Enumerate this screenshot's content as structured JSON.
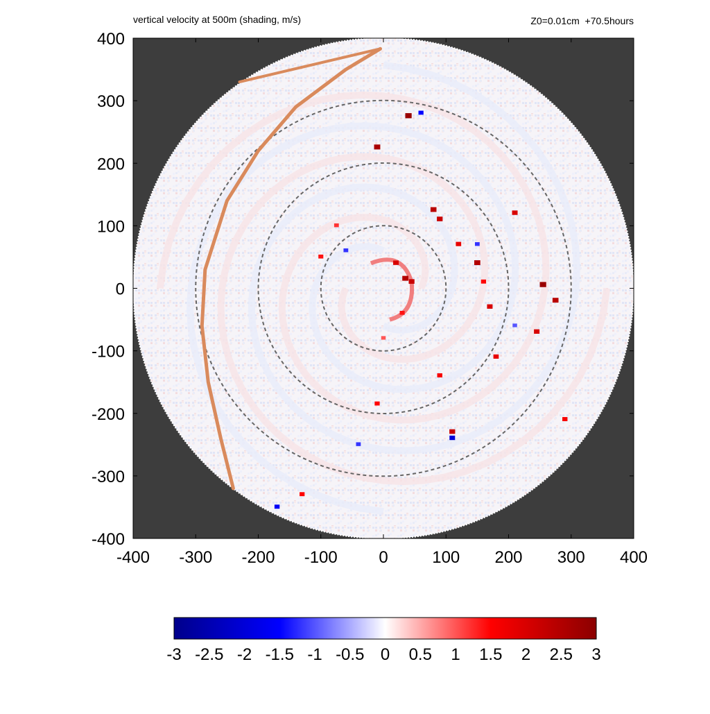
{
  "header": {
    "title": "vertical velocity at 500m (shading, m/s)",
    "run_info": "Z0=0.01cm  +70.5hours"
  },
  "chart_data": {
    "type": "heatmap",
    "title": "vertical velocity at 500m (shading, m/s)",
    "annotation": "Z0=0.01cm  +70.5hours",
    "xlim": [
      -400,
      400
    ],
    "ylim": [
      -400,
      400
    ],
    "xticks": [
      -400,
      -300,
      -200,
      -100,
      0,
      100,
      200,
      300,
      400
    ],
    "yticks": [
      -400,
      -300,
      -200,
      -100,
      0,
      100,
      200,
      300,
      400
    ],
    "xtick_labels": [
      "-400",
      "-300",
      "-200",
      "-100",
      "0",
      "100",
      "200",
      "300",
      "400"
    ],
    "ytick_labels": [
      "-400",
      "-300",
      "-200",
      "-100",
      "0",
      "100",
      "200",
      "300",
      "400"
    ],
    "domain_radius": 400,
    "range_rings": [
      100,
      200,
      300
    ],
    "background_color": "#3d3d3d",
    "orange_trajectory": {
      "color": "#d98a5c",
      "points": [
        [
          -5,
          383
        ],
        [
          -60,
          350
        ],
        [
          -140,
          290
        ],
        [
          -200,
          220
        ],
        [
          -250,
          140
        ],
        [
          -285,
          30
        ],
        [
          -290,
          -60
        ],
        [
          -280,
          -150
        ],
        [
          -260,
          -240
        ],
        [
          -240,
          -320
        ]
      ],
      "branch_to": [
        -230,
        330
      ]
    },
    "colorbar": {
      "vmin": -3,
      "vmax": 3,
      "tick_values": [
        -3,
        -2.5,
        -2,
        -1.5,
        -1,
        -0.5,
        0,
        0.5,
        1,
        1.5,
        2,
        2.5,
        3
      ],
      "tick_labels": [
        "-3",
        "-2.5",
        "-2",
        "-1.5",
        "-1",
        "-0.5",
        "0",
        "0.5",
        "1",
        "1.5",
        "2",
        "2.5",
        "3"
      ],
      "colors": [
        "#00008b",
        "#0000ff",
        "#ffffff",
        "#ff0000",
        "#8b0000"
      ]
    },
    "features": [
      {
        "kind": "updraft",
        "x": 20,
        "y": 40,
        "value": 2.0
      },
      {
        "kind": "updraft",
        "x": 35,
        "y": 15,
        "value": 2.5
      },
      {
        "kind": "updraft",
        "x": 45,
        "y": 10,
        "value": 2.2
      },
      {
        "kind": "updraft",
        "x": 30,
        "y": -40,
        "value": 1.4
      },
      {
        "kind": "updraft",
        "x": 0,
        "y": -80,
        "value": 1.0
      },
      {
        "kind": "updraft",
        "x": 80,
        "y": 125,
        "value": 2.4
      },
      {
        "kind": "updraft",
        "x": 90,
        "y": 110,
        "value": 2.2
      },
      {
        "kind": "updraft",
        "x": 120,
        "y": 70,
        "value": 1.8
      },
      {
        "kind": "updraft",
        "x": 150,
        "y": 40,
        "value": 2.5
      },
      {
        "kind": "updraft",
        "x": 160,
        "y": 10,
        "value": 1.5
      },
      {
        "kind": "updraft",
        "x": 170,
        "y": -30,
        "value": 2.0
      },
      {
        "kind": "updraft",
        "x": 40,
        "y": 275,
        "value": 2.8
      },
      {
        "kind": "updraft",
        "x": -10,
        "y": 225,
        "value": 2.6
      },
      {
        "kind": "updraft",
        "x": 210,
        "y": 120,
        "value": 2.0
      },
      {
        "kind": "updraft",
        "x": 255,
        "y": 5,
        "value": 2.8
      },
      {
        "kind": "updraft",
        "x": 275,
        "y": -20,
        "value": 2.4
      },
      {
        "kind": "updraft",
        "x": 245,
        "y": -70,
        "value": 2.0
      },
      {
        "kind": "updraft",
        "x": 180,
        "y": -110,
        "value": 1.8
      },
      {
        "kind": "updraft",
        "x": 90,
        "y": -140,
        "value": 1.6
      },
      {
        "kind": "updraft",
        "x": 110,
        "y": -230,
        "value": 2.2
      },
      {
        "kind": "updraft",
        "x": -10,
        "y": -185,
        "value": 1.5
      },
      {
        "kind": "updraft",
        "x": -100,
        "y": 50,
        "value": 1.4
      },
      {
        "kind": "updraft",
        "x": -75,
        "y": 100,
        "value": 1.2
      },
      {
        "kind": "updraft",
        "x": 290,
        "y": -210,
        "value": 1.6
      },
      {
        "kind": "updraft",
        "x": -130,
        "y": -330,
        "value": 1.5
      },
      {
        "kind": "downdraft",
        "x": -60,
        "y": 60,
        "value": -1.2
      },
      {
        "kind": "downdraft",
        "x": 110,
        "y": -240,
        "value": -2.0
      },
      {
        "kind": "downdraft",
        "x": -170,
        "y": -350,
        "value": -1.6
      },
      {
        "kind": "downdraft",
        "x": 150,
        "y": 70,
        "value": -1.2
      },
      {
        "kind": "downdraft",
        "x": 60,
        "y": 280,
        "value": -1.5
      },
      {
        "kind": "downdraft",
        "x": -40,
        "y": -250,
        "value": -1.2
      },
      {
        "kind": "downdraft",
        "x": 210,
        "y": -60,
        "value": -1.0
      }
    ]
  }
}
